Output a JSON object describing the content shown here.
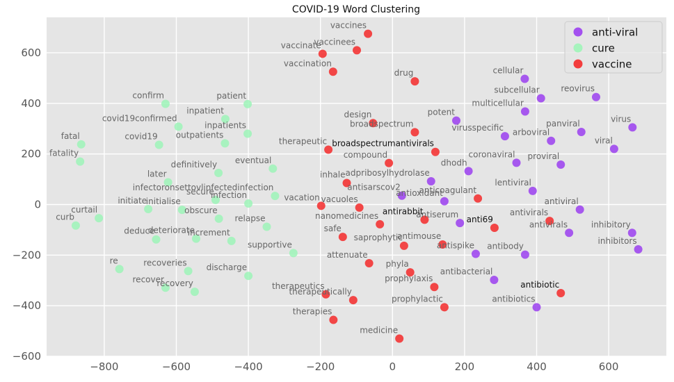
{
  "chart_data": {
    "type": "scatter",
    "title": "COVID-19 Word Clustering",
    "xlabel": "",
    "ylabel": "",
    "xlim": [
      -960,
      760
    ],
    "ylim": [
      -600,
      740
    ],
    "xticks": [
      -800,
      -600,
      -400,
      -200,
      0,
      200,
      400,
      600
    ],
    "xtick_labels": [
      "−800",
      "−600",
      "−400",
      "−200",
      "0",
      "200",
      "400",
      "600"
    ],
    "yticks": [
      -600,
      -400,
      -200,
      0,
      200,
      400,
      600
    ],
    "ytick_labels": [
      "−600",
      "−400",
      "−200",
      "0",
      "200",
      "400",
      "600"
    ],
    "grid": true,
    "legend_position": "top-right",
    "series": [
      {
        "name": "anti-viral",
        "color": "#9b3ff0",
        "points": [
          {
            "label": "cellular",
            "x": 367,
            "y": 497
          },
          {
            "label": "subcellular",
            "x": 412,
            "y": 420
          },
          {
            "label": "reovirus",
            "x": 565,
            "y": 425
          },
          {
            "label": "multicellular",
            "x": 368,
            "y": 368
          },
          {
            "label": "potent",
            "x": 177,
            "y": 332
          },
          {
            "label": "virusspecific",
            "x": 312,
            "y": 270
          },
          {
            "label": "arboviral",
            "x": 440,
            "y": 252
          },
          {
            "label": "panviral",
            "x": 524,
            "y": 287
          },
          {
            "label": "virus",
            "x": 666,
            "y": 305
          },
          {
            "label": "viral",
            "x": 615,
            "y": 220
          },
          {
            "label": "coronaviral",
            "x": 344,
            "y": 165
          },
          {
            "label": "proviral",
            "x": 467,
            "y": 158
          },
          {
            "label": "dhodh",
            "x": 211,
            "y": 132
          },
          {
            "label": "adpribosylhydrolase",
            "x": 107,
            "y": 92
          },
          {
            "label": "lentiviral",
            "x": 389,
            "y": 54
          },
          {
            "label": "antisarscov2",
            "x": 26,
            "y": 35
          },
          {
            "label": "antioxidant",
            "x": 144,
            "y": 13
          },
          {
            "label": "antiviral",
            "x": 520,
            "y": -20
          },
          {
            "label": "antiserum",
            "x": 187,
            "y": -73
          },
          {
            "label": "antivirals",
            "x": 490,
            "y": -112
          },
          {
            "label": "inhibitory",
            "x": 665,
            "y": -112
          },
          {
            "label": "inhibitors",
            "x": 682,
            "y": -177
          },
          {
            "label": "antispike",
            "x": 231,
            "y": -195
          },
          {
            "label": "antibody",
            "x": 368,
            "y": -198
          },
          {
            "label": "antibacterial",
            "x": 282,
            "y": -298
          },
          {
            "label": "antibiotics",
            "x": 400,
            "y": -406
          }
        ]
      },
      {
        "name": "cure",
        "color": "#9ef5b8",
        "points": [
          {
            "label": "confirm",
            "x": -630,
            "y": 398
          },
          {
            "label": "patient",
            "x": -402,
            "y": 397
          },
          {
            "label": "inpatient",
            "x": -464,
            "y": 338
          },
          {
            "label": "covid19confirmed",
            "x": -594,
            "y": 308
          },
          {
            "label": "inpatients",
            "x": -402,
            "y": 280
          },
          {
            "label": "fatal",
            "x": -864,
            "y": 238
          },
          {
            "label": "covid19",
            "x": -648,
            "y": 236
          },
          {
            "label": "outpatients",
            "x": -465,
            "y": 242
          },
          {
            "label": "fatality",
            "x": -867,
            "y": 170
          },
          {
            "label": "definitively",
            "x": -483,
            "y": 125
          },
          {
            "label": "eventual",
            "x": -332,
            "y": 142
          },
          {
            "label": "later",
            "x": -623,
            "y": 88
          },
          {
            "label": "secure",
            "x": -491,
            "y": 18
          },
          {
            "label": "infection",
            "x": -400,
            "y": 4
          },
          {
            "label": "infectoronsettovlinfectedinfection",
            "x": -326,
            "y": 34
          },
          {
            "label": "initiate",
            "x": -678,
            "y": -18
          },
          {
            "label": "initialise",
            "x": -584,
            "y": -21
          },
          {
            "label": "curtail",
            "x": -815,
            "y": -54
          },
          {
            "label": "obscure",
            "x": -482,
            "y": -56
          },
          {
            "label": "curb",
            "x": -879,
            "y": -83
          },
          {
            "label": "relapse",
            "x": -349,
            "y": -88
          },
          {
            "label": "deduce",
            "x": -656,
            "y": -138
          },
          {
            "label": "deteriorate",
            "x": -545,
            "y": -135
          },
          {
            "label": "increment",
            "x": -447,
            "y": -144
          },
          {
            "label": "supportive",
            "x": -275,
            "y": -192
          },
          {
            "label": "re",
            "x": -758,
            "y": -255
          },
          {
            "label": "recoveries",
            "x": -567,
            "y": -263
          },
          {
            "label": "discharge",
            "x": -400,
            "y": -282
          },
          {
            "label": "recover",
            "x": -630,
            "y": -329
          },
          {
            "label": "recovery",
            "x": -549,
            "y": -345
          }
        ]
      },
      {
        "name": "vaccine",
        "color": "#f42a2a",
        "points": [
          {
            "label": "vaccines",
            "x": -68,
            "y": 675
          },
          {
            "label": "vaccinees",
            "x": -99,
            "y": 610
          },
          {
            "label": "vaccinate",
            "x": -194,
            "y": 596
          },
          {
            "label": "vaccination",
            "x": -165,
            "y": 525
          },
          {
            "label": "drug",
            "x": 62,
            "y": 487
          },
          {
            "label": "design",
            "x": -54,
            "y": 322
          },
          {
            "label": "broadspectrum",
            "x": 62,
            "y": 286
          },
          {
            "label": "therapeutic",
            "x": -178,
            "y": 217
          },
          {
            "label": "broadspectrumantivirals",
            "x": 119,
            "y": 208
          },
          {
            "label": "compound",
            "x": -10,
            "y": 164
          },
          {
            "label": "inhale",
            "x": -127,
            "y": 85
          },
          {
            "label": "anticoagulant",
            "x": 237,
            "y": 24
          },
          {
            "label": "vacation",
            "x": -198,
            "y": -5
          },
          {
            "label": "vacuoles",
            "x": -92,
            "y": -12
          },
          {
            "label": "antirabbit",
            "x": 89,
            "y": -60
          },
          {
            "label": "nanomedicines",
            "x": -35,
            "y": -78
          },
          {
            "label": "anti69",
            "x": 283,
            "y": -92
          },
          {
            "label": "antivirals",
            "x": 436,
            "y": -65
          },
          {
            "label": "safe",
            "x": -138,
            "y": -128
          },
          {
            "label": "saprophytic",
            "x": 32,
            "y": -163
          },
          {
            "label": "antimouse",
            "x": 139,
            "y": -158
          },
          {
            "label": "attenuate",
            "x": -65,
            "y": -232
          },
          {
            "label": "phyla",
            "x": 49,
            "y": -268
          },
          {
            "label": "prophylaxis",
            "x": 116,
            "y": -326
          },
          {
            "label": "antibiotic",
            "x": 467,
            "y": -350
          },
          {
            "label": "therapeutics",
            "x": -185,
            "y": -355
          },
          {
            "label": "therapeutically",
            "x": -109,
            "y": -378
          },
          {
            "label": "prophylactic",
            "x": 144,
            "y": -406
          },
          {
            "label": "therapies",
            "x": -164,
            "y": -456
          },
          {
            "label": "medicine",
            "x": 19,
            "y": -530
          }
        ]
      }
    ]
  }
}
